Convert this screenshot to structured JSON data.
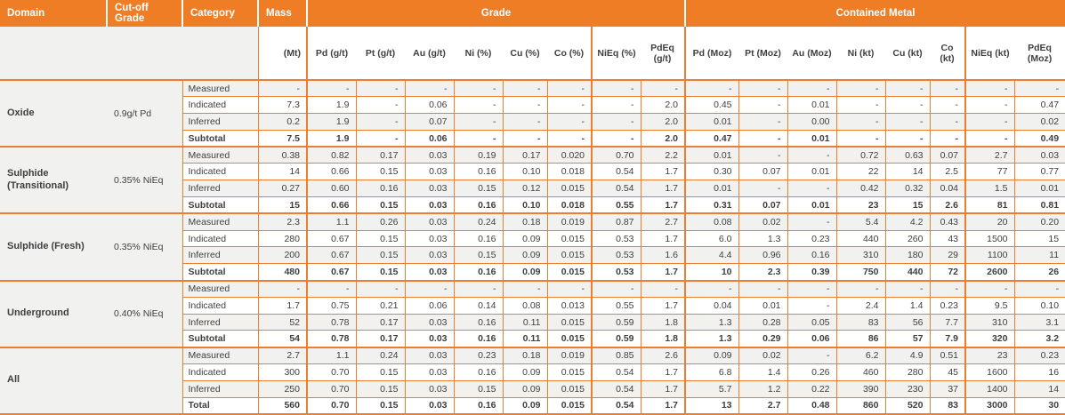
{
  "header": {
    "domain": "Domain",
    "cutoff": "Cut-off Grade",
    "category": "Category",
    "mass": "Mass",
    "grade_group": "Grade",
    "contained_group": "Contained Metal",
    "units": [
      "(Mt)",
      "Pd (g/t)",
      "Pt (g/t)",
      "Au (g/t)",
      "Ni (%)",
      "Cu (%)",
      "Co (%)",
      "NiEq (%)",
      "PdEq (g/t)",
      "Pd (Moz)",
      "Pt (Moz)",
      "Au (Moz)",
      "Ni (kt)",
      "Cu (kt)",
      "Co (kt)",
      "NiEq (kt)",
      "PdEq (Moz)"
    ]
  },
  "colors": {
    "accent_orange": "#EE7D26",
    "grid_orange": "#ED7D31",
    "stripe_gray": "#F1F1F0"
  },
  "sections": [
    {
      "domain": "Oxide",
      "cutoff": "0.9g/t Pd",
      "rows": [
        {
          "category": "Measured",
          "mass": "-",
          "bold": false,
          "grade": [
            "-",
            "-",
            "-",
            "-",
            "-",
            "-",
            "-",
            "-"
          ],
          "metal": [
            "-",
            "-",
            "-",
            "-",
            "-",
            "-",
            "-",
            "-"
          ]
        },
        {
          "category": "Indicated",
          "mass": "7.3",
          "bold": false,
          "grade": [
            "1.9",
            "-",
            "0.06",
            "-",
            "-",
            "-",
            "-",
            "2.0"
          ],
          "metal": [
            "0.45",
            "-",
            "0.01",
            "-",
            "-",
            "-",
            "-",
            "0.47"
          ]
        },
        {
          "category": "Inferred",
          "mass": "0.2",
          "bold": false,
          "grade": [
            "1.9",
            "-",
            "0.07",
            "-",
            "-",
            "-",
            "-",
            "2.0"
          ],
          "metal": [
            "0.01",
            "-",
            "0.00",
            "-",
            "-",
            "-",
            "-",
            "0.02"
          ]
        },
        {
          "category": "Subtotal",
          "mass": "7.5",
          "bold": true,
          "grade": [
            "1.9",
            "-",
            "0.06",
            "-",
            "-",
            "-",
            "-",
            "2.0"
          ],
          "metal": [
            "0.47",
            "-",
            "0.01",
            "-",
            "-",
            "-",
            "-",
            "0.49"
          ]
        }
      ]
    },
    {
      "domain": "Sulphide (Transitional)",
      "cutoff": "0.35% NiEq",
      "rows": [
        {
          "category": "Measured",
          "mass": "0.38",
          "bold": false,
          "grade": [
            "0.82",
            "0.17",
            "0.03",
            "0.19",
            "0.17",
            "0.020",
            "0.70",
            "2.2"
          ],
          "metal": [
            "0.01",
            "-",
            "-",
            "0.72",
            "0.63",
            "0.07",
            "2.7",
            "0.03"
          ]
        },
        {
          "category": "Indicated",
          "mass": "14",
          "bold": false,
          "grade": [
            "0.66",
            "0.15",
            "0.03",
            "0.16",
            "0.10",
            "0.018",
            "0.54",
            "1.7"
          ],
          "metal": [
            "0.30",
            "0.07",
            "0.01",
            "22",
            "14",
            "2.5",
            "77",
            "0.77"
          ]
        },
        {
          "category": "Inferred",
          "mass": "0.27",
          "bold": false,
          "grade": [
            "0.60",
            "0.16",
            "0.03",
            "0.15",
            "0.12",
            "0.015",
            "0.54",
            "1.7"
          ],
          "metal": [
            "0.01",
            "-",
            "-",
            "0.42",
            "0.32",
            "0.04",
            "1.5",
            "0.01"
          ]
        },
        {
          "category": "Subtotal",
          "mass": "15",
          "bold": true,
          "grade": [
            "0.66",
            "0.15",
            "0.03",
            "0.16",
            "0.10",
            "0.018",
            "0.55",
            "1.7"
          ],
          "metal": [
            "0.31",
            "0.07",
            "0.01",
            "23",
            "15",
            "2.6",
            "81",
            "0.81"
          ]
        }
      ]
    },
    {
      "domain": "Sulphide (Fresh)",
      "cutoff": "0.35% NiEq",
      "rows": [
        {
          "category": "Measured",
          "mass": "2.3",
          "bold": false,
          "grade": [
            "1.1",
            "0.26",
            "0.03",
            "0.24",
            "0.18",
            "0.019",
            "0.87",
            "2.7"
          ],
          "metal": [
            "0.08",
            "0.02",
            "-",
            "5.4",
            "4.2",
            "0.43",
            "20",
            "0.20"
          ]
        },
        {
          "category": "Indicated",
          "mass": "280",
          "bold": false,
          "grade": [
            "0.67",
            "0.15",
            "0.03",
            "0.16",
            "0.09",
            "0.015",
            "0.53",
            "1.7"
          ],
          "metal": [
            "6.0",
            "1.3",
            "0.23",
            "440",
            "260",
            "43",
            "1500",
            "15"
          ]
        },
        {
          "category": "Inferred",
          "mass": "200",
          "bold": false,
          "grade": [
            "0.67",
            "0.15",
            "0.03",
            "0.15",
            "0.09",
            "0.015",
            "0.53",
            "1.6"
          ],
          "metal": [
            "4.4",
            "0.96",
            "0.16",
            "310",
            "180",
            "29",
            "1100",
            "11"
          ]
        },
        {
          "category": "Subtotal",
          "mass": "480",
          "bold": true,
          "grade": [
            "0.67",
            "0.15",
            "0.03",
            "0.16",
            "0.09",
            "0.015",
            "0.53",
            "1.7"
          ],
          "metal": [
            "10",
            "2.3",
            "0.39",
            "750",
            "440",
            "72",
            "2600",
            "26"
          ]
        }
      ]
    },
    {
      "domain": "Underground",
      "cutoff": "0.40% NiEq",
      "rows": [
        {
          "category": "Measured",
          "mass": "-",
          "bold": false,
          "grade": [
            "-",
            "-",
            "-",
            "-",
            "-",
            "-",
            "-",
            "-"
          ],
          "metal": [
            "-",
            "-",
            "-",
            "-",
            "-",
            "-",
            "-",
            "-"
          ]
        },
        {
          "category": "Indicated",
          "mass": "1.7",
          "bold": false,
          "grade": [
            "0.75",
            "0.21",
            "0.06",
            "0.14",
            "0.08",
            "0.013",
            "0.55",
            "1.7"
          ],
          "metal": [
            "0.04",
            "0.01",
            "-",
            "2.4",
            "1.4",
            "0.23",
            "9.5",
            "0.10"
          ]
        },
        {
          "category": "Inferred",
          "mass": "52",
          "bold": false,
          "grade": [
            "0.78",
            "0.17",
            "0.03",
            "0.16",
            "0.11",
            "0.015",
            "0.59",
            "1.8"
          ],
          "metal": [
            "1.3",
            "0.28",
            "0.05",
            "83",
            "56",
            "7.7",
            "310",
            "3.1"
          ]
        },
        {
          "category": "Subtotal",
          "mass": "54",
          "bold": true,
          "grade": [
            "0.78",
            "0.17",
            "0.03",
            "0.16",
            "0.11",
            "0.015",
            "0.59",
            "1.8"
          ],
          "metal": [
            "1.3",
            "0.29",
            "0.06",
            "86",
            "57",
            "7.9",
            "320",
            "3.2"
          ]
        }
      ]
    },
    {
      "domain": "All",
      "cutoff": "",
      "rows": [
        {
          "category": "Measured",
          "mass": "2.7",
          "bold": false,
          "grade": [
            "1.1",
            "0.24",
            "0.03",
            "0.23",
            "0.18",
            "0.019",
            "0.85",
            "2.6"
          ],
          "metal": [
            "0.09",
            "0.02",
            "-",
            "6.2",
            "4.9",
            "0.51",
            "23",
            "0.23"
          ]
        },
        {
          "category": "Indicated",
          "mass": "300",
          "bold": false,
          "grade": [
            "0.70",
            "0.15",
            "0.03",
            "0.16",
            "0.09",
            "0.015",
            "0.54",
            "1.7"
          ],
          "metal": [
            "6.8",
            "1.4",
            "0.26",
            "460",
            "280",
            "45",
            "1600",
            "16"
          ]
        },
        {
          "category": "Inferred",
          "mass": "250",
          "bold": false,
          "grade": [
            "0.70",
            "0.15",
            "0.03",
            "0.15",
            "0.09",
            "0.015",
            "0.54",
            "1.7"
          ],
          "metal": [
            "5.7",
            "1.2",
            "0.22",
            "390",
            "230",
            "37",
            "1400",
            "14"
          ]
        },
        {
          "category": "Total",
          "mass": "560",
          "bold": true,
          "grade": [
            "0.70",
            "0.15",
            "0.03",
            "0.16",
            "0.09",
            "0.015",
            "0.54",
            "1.7"
          ],
          "metal": [
            "13",
            "2.7",
            "0.48",
            "860",
            "520",
            "83",
            "3000",
            "30"
          ]
        }
      ]
    }
  ]
}
